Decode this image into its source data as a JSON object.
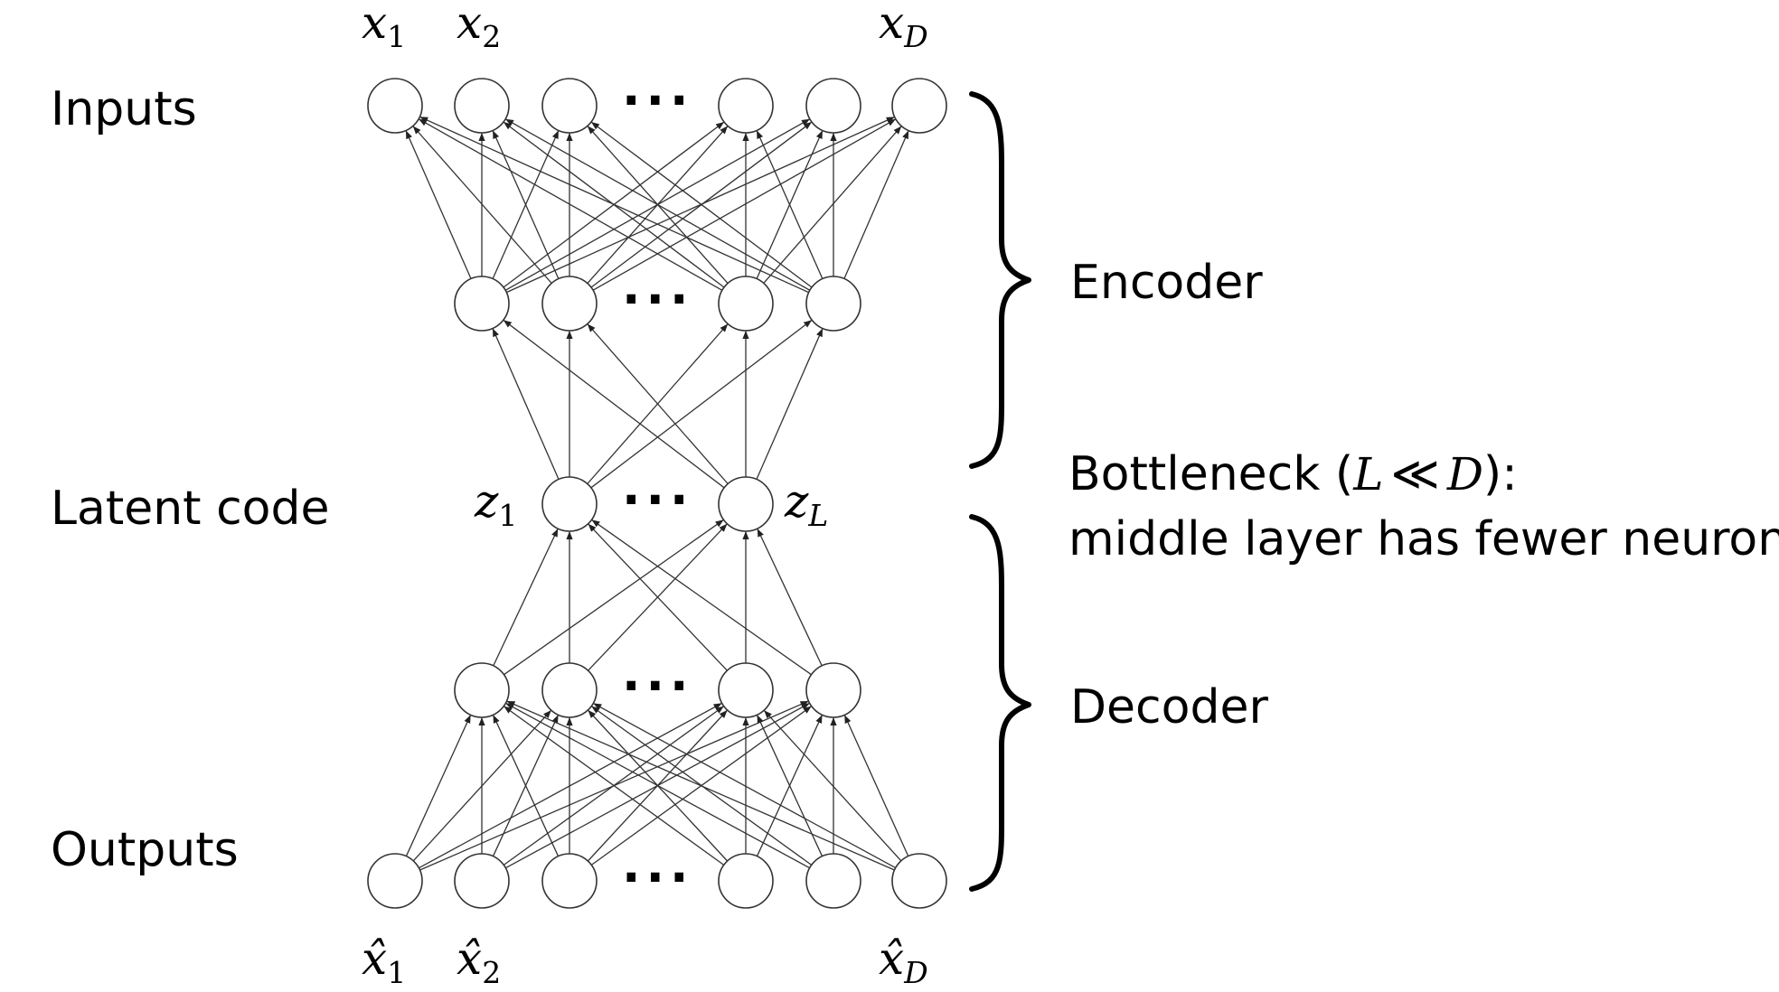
{
  "row_labels": {
    "inputs": "Inputs",
    "latent": "Latent code",
    "outputs": "Outputs"
  },
  "brace_labels": {
    "encoder": "Encoder",
    "decoder": "Decoder"
  },
  "bottleneck": {
    "line1_prefix": "Bottleneck (",
    "L": "L",
    "ll": "≪",
    "D": "D",
    "line1_suffix": "):",
    "line2": "middle layer has fewer neurons"
  },
  "variables": {
    "x": "x",
    "x_hat": "x̂",
    "z": "z",
    "sub_1": "1",
    "sub_2": "2",
    "sub_D": "D",
    "sub_L": "L"
  },
  "ellipsis": "···"
}
